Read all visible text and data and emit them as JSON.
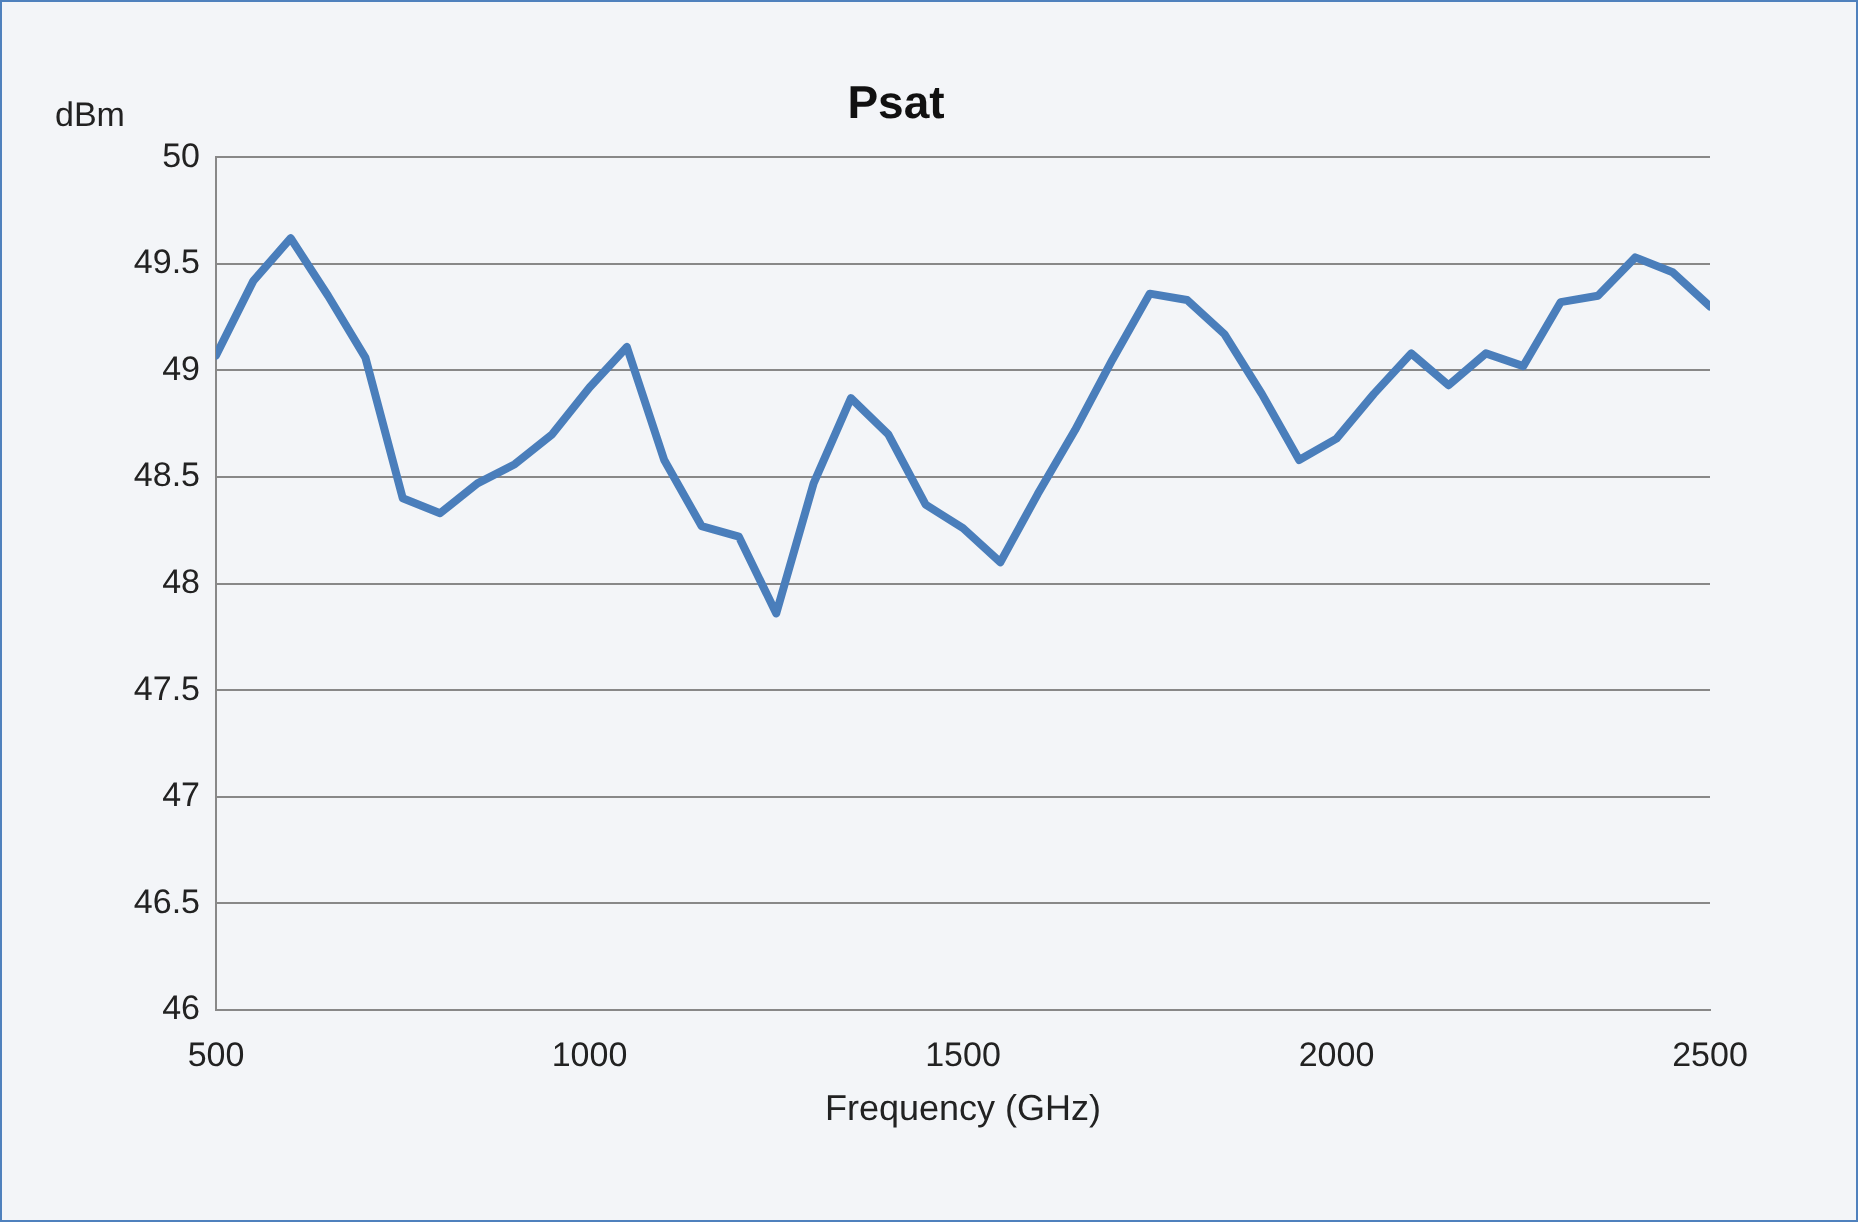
{
  "chart_data": {
    "type": "line",
    "title": "Psat",
    "xlabel": "Frequency (GHz)",
    "ylabel": "dBm",
    "x": [
      500,
      550,
      600,
      650,
      700,
      750,
      800,
      850,
      900,
      950,
      1000,
      1050,
      1100,
      1150,
      1200,
      1250,
      1300,
      1350,
      1400,
      1450,
      1500,
      1550,
      1600,
      1650,
      1700,
      1750,
      1800,
      1850,
      1900,
      1950,
      2000,
      2050,
      2100,
      2150,
      2200,
      2250,
      2300,
      2350,
      2400,
      2450,
      2500
    ],
    "series": [
      {
        "color": "#4a7ebb",
        "values": [
          49.07,
          49.42,
          49.62,
          49.35,
          49.06,
          48.4,
          48.33,
          48.47,
          48.56,
          48.7,
          48.92,
          49.11,
          48.58,
          48.27,
          48.22,
          47.86,
          48.47,
          48.87,
          48.7,
          48.37,
          48.26,
          48.1,
          48.42,
          48.72,
          49.05,
          49.36,
          49.33,
          49.17,
          48.89,
          48.58,
          48.68,
          48.89,
          49.08,
          48.93,
          49.08,
          49.02,
          49.32,
          49.35,
          49.53,
          49.46,
          49.3
        ]
      }
    ],
    "xlim": [
      500,
      2500
    ],
    "xticks": [
      500,
      1000,
      1500,
      2000,
      2500
    ],
    "ylim": [
      46,
      50
    ],
    "yticks": [
      46,
      46.5,
      47,
      47.5,
      48,
      48.5,
      49,
      49.5,
      50
    ],
    "grid": "y",
    "legend": false,
    "marker": "none",
    "line_style": "solid"
  }
}
